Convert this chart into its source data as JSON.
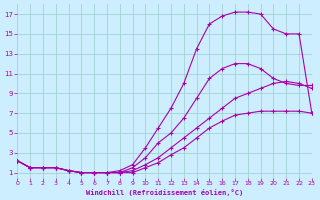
{
  "xlabel": "Windchill (Refroidissement éolien,°C)",
  "background_color": "#cceeff",
  "line_color": "#aa00aa",
  "grid_color": "#99cccc",
  "xlim": [
    0,
    23
  ],
  "ylim": [
    0.5,
    18
  ],
  "xticks": [
    0,
    1,
    2,
    3,
    4,
    5,
    6,
    7,
    8,
    9,
    10,
    11,
    12,
    13,
    14,
    15,
    16,
    17,
    18,
    19,
    20,
    21,
    22,
    23
  ],
  "yticks": [
    1,
    3,
    5,
    7,
    9,
    11,
    13,
    15,
    17
  ],
  "lines": [
    {
      "x": [
        0,
        1,
        2,
        3,
        4,
        5,
        6,
        7,
        8,
        9,
        10,
        11,
        12,
        13,
        14,
        15,
        16,
        17,
        18,
        19,
        20,
        21,
        22,
        23
      ],
      "y": [
        2.2,
        1.5,
        1.5,
        1.5,
        1.2,
        1.0,
        1.0,
        1.0,
        1.2,
        1.8,
        3.5,
        5.5,
        7.5,
        10.0,
        13.5,
        16.0,
        16.8,
        17.2,
        17.2,
        17.0,
        15.5,
        15.0,
        15.0,
        7.0
      ]
    },
    {
      "x": [
        0,
        1,
        2,
        3,
        4,
        5,
        6,
        7,
        8,
        9,
        10,
        11,
        12,
        13,
        14,
        15,
        16,
        17,
        18,
        19,
        20,
        21,
        22,
        23
      ],
      "y": [
        2.2,
        1.5,
        1.5,
        1.5,
        1.2,
        1.0,
        1.0,
        1.0,
        1.0,
        1.5,
        2.5,
        4.0,
        5.0,
        6.5,
        8.5,
        10.5,
        11.5,
        12.0,
        12.0,
        11.5,
        10.5,
        10.0,
        9.8,
        9.8
      ]
    },
    {
      "x": [
        0,
        1,
        2,
        3,
        4,
        5,
        6,
        7,
        8,
        9,
        10,
        11,
        12,
        13,
        14,
        15,
        16,
        17,
        18,
        19,
        20,
        21,
        22,
        23
      ],
      "y": [
        2.2,
        1.5,
        1.5,
        1.5,
        1.2,
        1.0,
        1.0,
        1.0,
        1.0,
        1.2,
        1.8,
        2.5,
        3.5,
        4.5,
        5.5,
        6.5,
        7.5,
        8.5,
        9.0,
        9.5,
        10.0,
        10.2,
        10.0,
        9.5
      ]
    },
    {
      "x": [
        0,
        1,
        2,
        3,
        4,
        5,
        6,
        7,
        8,
        9,
        10,
        11,
        12,
        13,
        14,
        15,
        16,
        17,
        18,
        19,
        20,
        21,
        22,
        23
      ],
      "y": [
        2.2,
        1.5,
        1.5,
        1.5,
        1.2,
        1.0,
        1.0,
        1.0,
        1.0,
        1.0,
        1.5,
        2.0,
        2.8,
        3.5,
        4.5,
        5.5,
        6.2,
        6.8,
        7.0,
        7.2,
        7.2,
        7.2,
        7.2,
        7.0
      ]
    }
  ]
}
